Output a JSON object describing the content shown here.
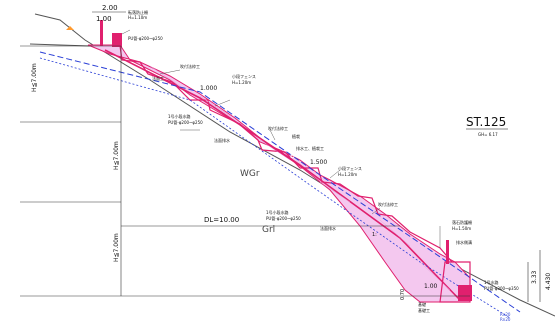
{
  "station": {
    "title": "ST.125",
    "sub": "GH= 6.17"
  },
  "geology": {
    "upper": "WGr",
    "lower": "Grl"
  },
  "dl": "DL=10.00",
  "dims": {
    "top_width": "2.00",
    "top_width2": "1.00",
    "h1": "H≦7.00m",
    "h2": "H≦7.00m",
    "h3": "H≦7.00m",
    "w1": "1.000",
    "w2": "1.500",
    "w3": "1.00",
    "right_a": "3.33",
    "right_b": "4.430",
    "bottom": "0.700",
    "bottom_label": "0.70"
  },
  "labels": [
    {
      "t": "転落防止柵",
      "id": "fall-fence-top"
    },
    {
      "t": "H=1.10m",
      "id": "fall-fence-top-h"
    },
    {
      "t": "PU管-φ200~φ250",
      "id": "pipe-top"
    },
    {
      "t": "法面工",
      "id": "slope-work-1"
    },
    {
      "t": "吹付法枠工",
      "id": "frame-work-1"
    },
    {
      "t": "小段フェンス",
      "id": "fence-1"
    },
    {
      "t": "H=1.20m",
      "id": "fence-1-h"
    },
    {
      "t": "1号小段水路",
      "id": "channel-1"
    },
    {
      "t": "PU管-φ200~φ250",
      "id": "pipe-1"
    },
    {
      "t": "吹付法枠工",
      "id": "frame-work-2"
    },
    {
      "t": "法面排水",
      "id": "drain-1"
    },
    {
      "t": "植栽",
      "id": "planting"
    },
    {
      "t": "排水工、植栽工",
      "id": "drain-planting"
    },
    {
      "t": "小段フェンス",
      "id": "fence-2"
    },
    {
      "t": "H=1.20m",
      "id": "fence-2-h"
    },
    {
      "t": "吹付法枠工",
      "id": "frame-work-3"
    },
    {
      "t": "1号小段水路",
      "id": "channel-2"
    },
    {
      "t": "PU管-φ200~φ250",
      "id": "pipe-2"
    },
    {
      "t": "法面排水",
      "id": "drain-2"
    },
    {
      "t": "落石防護柵",
      "id": "rockfall-fence"
    },
    {
      "t": "H=1.50m",
      "id": "rockfall-fence-h"
    },
    {
      "t": "排水側溝",
      "id": "side-ditch"
    },
    {
      "t": "1号水路",
      "id": "channel-bottom"
    },
    {
      "t": "PU管-φ300~φ350",
      "id": "pipe-bottom"
    },
    {
      "t": "基礎",
      "id": "foundation"
    },
    {
      "t": "基礎工",
      "id": "foundation-work"
    },
    {
      "t": "Rn20",
      "id": "rn20"
    },
    {
      "t": "Rn20",
      "id": "rn20b"
    },
    {
      "t": "B",
      "id": "berm-b"
    },
    {
      "t": "1:",
      "id": "slope-ratio"
    }
  ],
  "colors": {
    "fill": "#f4c8ef",
    "edge": "#e0206e",
    "blue": "#2a3fd6",
    "ground": "#555555"
  }
}
